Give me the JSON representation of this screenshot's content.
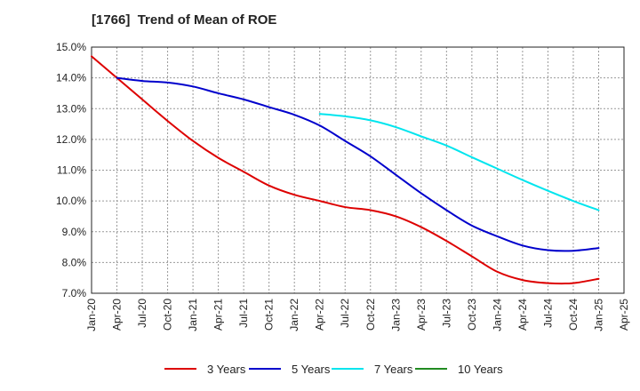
{
  "chart_data": {
    "type": "line",
    "title": "[1766]  Trend of Mean of ROE",
    "xlabel": "",
    "ylabel": "",
    "x_ticks": [
      "Jan-20",
      "Apr-20",
      "Jul-20",
      "Oct-20",
      "Jan-21",
      "Apr-21",
      "Jul-21",
      "Oct-21",
      "Jan-22",
      "Apr-22",
      "Jul-22",
      "Oct-22",
      "Jan-23",
      "Apr-23",
      "Jul-23",
      "Oct-23",
      "Jan-24",
      "Apr-24",
      "Jul-24",
      "Oct-24",
      "Jan-25",
      "Apr-25"
    ],
    "y_ticks": [
      "7.0%",
      "8.0%",
      "9.0%",
      "10.0%",
      "11.0%",
      "12.0%",
      "13.0%",
      "14.0%",
      "15.0%"
    ],
    "ylim": [
      7.0,
      15.0
    ],
    "grid": true,
    "legend_position": "bottom",
    "series": [
      {
        "name": "3 Years",
        "color": "#dd0000",
        "x": [
          "Jan-20",
          "Apr-20",
          "Jul-20",
          "Oct-20",
          "Jan-21",
          "Apr-21",
          "Jul-21",
          "Oct-21",
          "Jan-22",
          "Apr-22",
          "Jul-22",
          "Oct-22",
          "Jan-23",
          "Apr-23",
          "Jul-23",
          "Oct-23",
          "Jan-24",
          "Apr-24",
          "Jul-24",
          "Oct-24",
          "Jan-25"
        ],
        "values": [
          14.7,
          14.0,
          13.3,
          12.6,
          11.95,
          11.4,
          10.95,
          10.5,
          10.2,
          10.0,
          9.8,
          9.7,
          9.5,
          9.15,
          8.7,
          8.2,
          7.7,
          7.43,
          7.33,
          7.33,
          7.47
        ]
      },
      {
        "name": "5 Years",
        "color": "#0000cc",
        "x": [
          "Apr-20",
          "Jul-20",
          "Oct-20",
          "Jan-21",
          "Apr-21",
          "Jul-21",
          "Oct-21",
          "Jan-22",
          "Apr-22",
          "Jul-22",
          "Oct-22",
          "Jan-23",
          "Apr-23",
          "Jul-23",
          "Oct-23",
          "Jan-24",
          "Apr-24",
          "Jul-24",
          "Oct-24",
          "Jan-25"
        ],
        "values": [
          14.0,
          13.9,
          13.85,
          13.72,
          13.5,
          13.3,
          13.05,
          12.8,
          12.45,
          11.95,
          11.45,
          10.85,
          10.25,
          9.7,
          9.2,
          8.85,
          8.55,
          8.4,
          8.38,
          8.47
        ]
      },
      {
        "name": "7 Years",
        "color": "#00e5ee",
        "x": [
          "Apr-22",
          "Jul-22",
          "Oct-22",
          "Jan-23",
          "Apr-23",
          "Jul-23",
          "Oct-23",
          "Jan-24",
          "Apr-24",
          "Jul-24",
          "Oct-24",
          "Jan-25"
        ],
        "values": [
          12.83,
          12.75,
          12.62,
          12.4,
          12.1,
          11.8,
          11.42,
          11.05,
          10.68,
          10.33,
          10.0,
          9.7
        ]
      },
      {
        "name": "10 Years",
        "color": "#228b22",
        "x": [],
        "values": []
      }
    ]
  }
}
